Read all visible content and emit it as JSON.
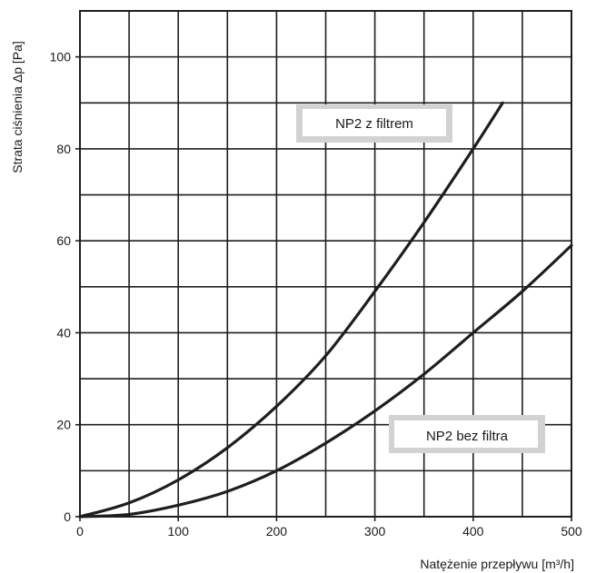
{
  "chart_data": {
    "type": "line",
    "xlabel": "Natężenie przepływu [m³/h]",
    "ylabel": "Strata ciśnienia  Δp [Pa]",
    "xlim": [
      0,
      500
    ],
    "ylim": [
      0,
      110
    ],
    "x_ticks": [
      "0",
      "100",
      "200",
      "300",
      "400",
      "500"
    ],
    "y_ticks": [
      "0",
      "20",
      "40",
      "60",
      "80",
      "100"
    ],
    "grid": true,
    "series": [
      {
        "name": "NP2 z filtrem",
        "x": [
          0,
          50,
          100,
          150,
          200,
          250,
          300,
          350,
          400,
          430
        ],
        "y": [
          0,
          3,
          8,
          15,
          24,
          35,
          49,
          64,
          80,
          90
        ]
      },
      {
        "name": "NP2 bez filtra",
        "x": [
          0,
          50,
          100,
          150,
          200,
          250,
          300,
          350,
          400,
          450,
          500
        ],
        "y": [
          0,
          0.5,
          2.5,
          5.5,
          10,
          16,
          23,
          31,
          40,
          49,
          59
        ]
      }
    ],
    "annotations": [
      {
        "text": "NP2 z filtrem"
      },
      {
        "text": "NP2 bez filtra"
      }
    ],
    "colors": {
      "line": "#1e1e1e",
      "grid": "#1e1e1e",
      "label_box": "#d2d2d2",
      "label_inner": "#ffffff"
    }
  }
}
